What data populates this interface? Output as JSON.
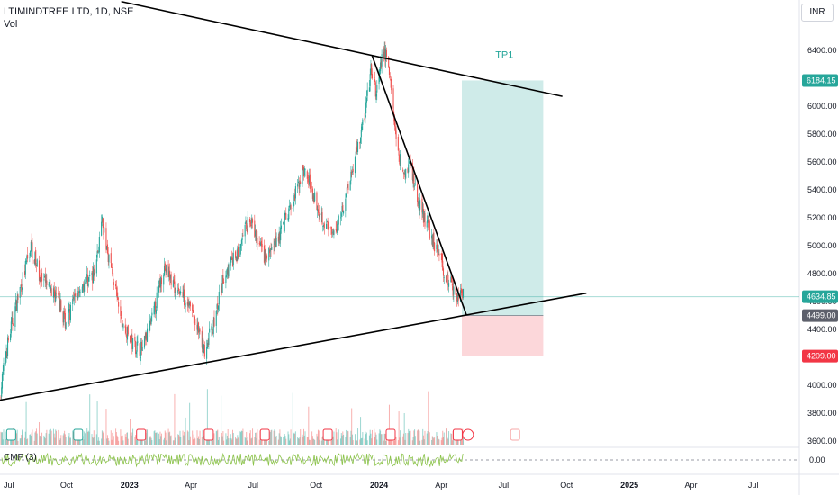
{
  "header": {
    "title": "LTIMINDTREE LTD, 1D, NSE",
    "sub": "Vol"
  },
  "currency": "INR",
  "indicator": {
    "name": "CMF (3)",
    "value_label": "0.00"
  },
  "markers": {
    "tp_label": "TP1",
    "tp_value": "6184.15",
    "last_value": "4634.85",
    "entry_value": "4499.00",
    "stop_value": "4209.00"
  },
  "colors": {
    "up": "#26a69a",
    "down": "#ef5350",
    "tp_zone": "#26a69a",
    "sl_zone": "#f23645",
    "line": "#000000",
    "axis_text": "#131722",
    "last_tag": "#26a69a",
    "entry_tag": "#5d606b",
    "stop_tag": "#f23645"
  },
  "chart_data": {
    "type": "candlestick",
    "title": "LTIMINDTREE LTD, 1D, NSE",
    "y_unit": "INR",
    "ylim": [
      3600,
      6700
    ],
    "y_ticks": [
      3600,
      3800,
      4000,
      4200,
      4400,
      4600,
      4800,
      5000,
      5200,
      5400,
      5600,
      5800,
      6000,
      6200,
      6400
    ],
    "x_tick_labels": [
      "Jul",
      "Oct",
      "2023",
      "Apr",
      "Jul",
      "Oct",
      "2024",
      "Apr",
      "Jul",
      "Oct",
      "2025",
      "Apr",
      "Jul"
    ],
    "bold_x_ticks": [
      "2023",
      "2024",
      "2025"
    ],
    "price_path": [
      [
        "2022-06-25",
        3900
      ],
      [
        "2022-07-05",
        4250
      ],
      [
        "2022-07-18",
        4550
      ],
      [
        "2022-08-10",
        5000
      ],
      [
        "2022-08-25",
        4750
      ],
      [
        "2022-09-15",
        4650
      ],
      [
        "2022-09-30",
        4450
      ],
      [
        "2022-10-20",
        4700
      ],
      [
        "2022-11-10",
        4800
      ],
      [
        "2022-11-22",
        5150
      ],
      [
        "2022-12-05",
        4850
      ],
      [
        "2022-12-20",
        4450
      ],
      [
        "2023-01-05",
        4300
      ],
      [
        "2023-01-20",
        4250
      ],
      [
        "2023-02-05",
        4500
      ],
      [
        "2023-02-20",
        4850
      ],
      [
        "2023-03-10",
        4700
      ],
      [
        "2023-03-28",
        4600
      ],
      [
        "2023-04-20",
        4250
      ],
      [
        "2023-05-05",
        4450
      ],
      [
        "2023-05-20",
        4800
      ],
      [
        "2023-06-10",
        4950
      ],
      [
        "2023-06-25",
        5200
      ],
      [
        "2023-07-05",
        5050
      ],
      [
        "2023-07-20",
        4900
      ],
      [
        "2023-08-10",
        5100
      ],
      [
        "2023-08-28",
        5300
      ],
      [
        "2023-09-12",
        5550
      ],
      [
        "2023-09-25",
        5400
      ],
      [
        "2023-10-10",
        5200
      ],
      [
        "2023-10-25",
        5050
      ],
      [
        "2023-11-10",
        5300
      ],
      [
        "2023-11-25",
        5600
      ],
      [
        "2023-12-10",
        5900
      ],
      [
        "2023-12-20",
        6250
      ],
      [
        "2023-12-28",
        6100
      ],
      [
        "2024-01-08",
        6400
      ],
      [
        "2024-01-15",
        6300
      ],
      [
        "2024-01-25",
        5800
      ],
      [
        "2024-02-05",
        5500
      ],
      [
        "2024-02-15",
        5600
      ],
      [
        "2024-02-28",
        5300
      ],
      [
        "2024-03-15",
        5100
      ],
      [
        "2024-03-28",
        4950
      ],
      [
        "2024-04-10",
        4750
      ],
      [
        "2024-04-25",
        4650
      ],
      [
        "2024-05-03",
        4634.85
      ]
    ],
    "trendlines": [
      {
        "name": "upper",
        "from": [
          "2022-12-20",
          6750
        ],
        "to": [
          "2024-09-25",
          6070
        ]
      },
      {
        "name": "lower",
        "from": [
          "2022-06-22",
          3890
        ],
        "to": [
          "2024-10-30",
          4660
        ]
      },
      {
        "name": "descent",
        "from": [
          "2023-12-22",
          6360
        ],
        "to": [
          "2024-05-08",
          4500
        ]
      }
    ],
    "position": {
      "entry": 4499.0,
      "target": 6184.15,
      "stop": 4209.0,
      "last": 4634.85,
      "start": "2024-05-01",
      "end": "2024-08-28",
      "target_label": "TP1"
    },
    "indicator_series_name": "CMF (3)",
    "indicator_last": 0.0
  }
}
